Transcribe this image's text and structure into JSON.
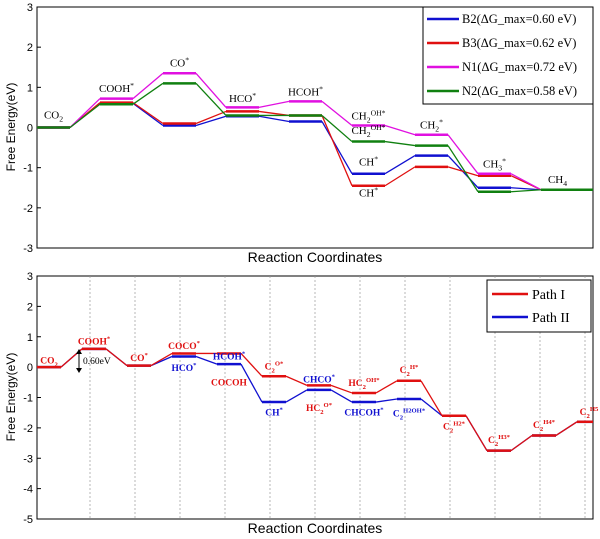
{
  "chart_data": [
    {
      "type": "line",
      "ylabel": "Free Energy(eV)",
      "xlabel": "Reaction Coordinates",
      "ylim": [
        -3,
        3
      ],
      "yticks": [
        "-3",
        "-2",
        "-1",
        "0",
        "1",
        "2",
        "3"
      ],
      "legend_position": "top-right",
      "series": [
        {
          "name": "B2(ΔG_max=0.60 eV)",
          "color": "#1010d0",
          "values": [
            0,
            0.6,
            0.05,
            0.28,
            0.15,
            -1.15,
            -0.7,
            -1.5,
            -1.55
          ]
        },
        {
          "name": "B3(ΔG_max=0.62 eV)",
          "color": "#e01010",
          "values": [
            0,
            0.62,
            0.1,
            0.4,
            0.3,
            -1.45,
            -0.98,
            -1.2,
            -1.55
          ]
        },
        {
          "name": "N1(ΔG_max=0.72 eV)",
          "color": "#e010e0",
          "values": [
            0,
            0.72,
            1.35,
            0.5,
            0.65,
            0.05,
            -0.18,
            -1.15,
            -1.55
          ]
        },
        {
          "name": "N2(ΔG_max=0.58 eV)",
          "color": "#108010",
          "values": [
            0,
            0.58,
            1.1,
            0.3,
            0.3,
            -0.35,
            -0.45,
            -1.6,
            -1.55
          ]
        }
      ],
      "annotations": [
        {
          "text": "CO",
          "sub": "2",
          "sup": "",
          "x": 0,
          "y": 0.22
        },
        {
          "text": "COOH",
          "sub": "",
          "sup": "*",
          "x": 1,
          "y": 0.88
        },
        {
          "text": "CO",
          "sub": "",
          "sup": "*",
          "x": 2,
          "y": 1.52
        },
        {
          "text": "HCO",
          "sub": "",
          "sup": "*",
          "x": 3,
          "y": 0.64
        },
        {
          "text": "HCOH",
          "sub": "",
          "sup": "*",
          "x": 4,
          "y": 0.8
        },
        {
          "text": "CH",
          "sub": "2",
          "sup": "OH*",
          "x": 5,
          "y": 0.2
        },
        {
          "text": "CH",
          "sub": "2",
          "sup": "OH*",
          "x": 5,
          "y": -0.16
        },
        {
          "text": "CH",
          "sub": "",
          "sup": "*",
          "x": 5,
          "y": -0.95
        },
        {
          "text": "CH",
          "sub": "",
          "sup": "*",
          "x": 5,
          "y": -1.72
        },
        {
          "text": "CH",
          "sub": "2",
          "sup": "*",
          "x": 6,
          "y": -0.03
        },
        {
          "text": "CH",
          "sub": "3",
          "sup": "*",
          "x": 7,
          "y": -1.0
        },
        {
          "text": "CH",
          "sub": "4",
          "sup": "",
          "x": 8,
          "y": -1.38
        }
      ]
    },
    {
      "type": "line",
      "ylabel": "Free Energy(eV)",
      "xlabel": "Reaction Coordinates",
      "ylim": [
        -5,
        3
      ],
      "yticks": [
        "-5",
        "-4",
        "-3",
        "-2",
        "-1",
        "0",
        "1",
        "2",
        "3"
      ],
      "legend_position": "top-right",
      "series": [
        {
          "name": "Path I",
          "color": "#e01010",
          "values": [
            0,
            0.6,
            0.05,
            0.45,
            0.45,
            -0.3,
            -0.6,
            -0.85,
            -0.45,
            -1.6,
            -2.75,
            -2.25,
            -1.8
          ]
        },
        {
          "name": "Path II",
          "color": "#1010d0",
          "values": [
            0,
            0.6,
            0.05,
            0.35,
            0.1,
            -1.15,
            -0.75,
            -1.15,
            -1.05,
            -1.6,
            -2.75,
            -2.25,
            -1.8
          ]
        }
      ],
      "annotations": [
        {
          "text": "CO",
          "sub": "2",
          "sup": "",
          "x": 0,
          "y": 0.12,
          "color": "red"
        },
        {
          "text": "COOH",
          "sub": "",
          "sup": "*",
          "x": 1,
          "y": 0.75,
          "color": "red"
        },
        {
          "text": "CO",
          "sub": "",
          "sup": "*",
          "x": 2,
          "y": 0.2,
          "color": "red"
        },
        {
          "text": "COCO",
          "sub": "",
          "sup": "*",
          "x": 3,
          "y": 0.6,
          "color": "red"
        },
        {
          "text": "HCO",
          "sub": "",
          "sup": "*",
          "x": 3,
          "y": -0.12,
          "color": "blue"
        },
        {
          "text": "HCOH",
          "sub": "",
          "sup": "*",
          "x": 4,
          "y": 0.25,
          "color": "blue"
        },
        {
          "text": "COCOH",
          "sub": "",
          "sup": "",
          "x": 4,
          "y": -0.6,
          "color": "red"
        },
        {
          "text": "C",
          "sub": "2",
          "sup": "O*",
          "x": 5,
          "y": -0.07,
          "color": "red"
        },
        {
          "text": "CH",
          "sub": "",
          "sup": "*",
          "x": 5,
          "y": -1.6,
          "color": "blue"
        },
        {
          "text": "CHCO",
          "sub": "",
          "sup": "*",
          "x": 6,
          "y": -0.5,
          "color": "blue"
        },
        {
          "text": "HC",
          "sub": "2",
          "sup": "O*",
          "x": 6,
          "y": -1.45,
          "color": "red"
        },
        {
          "text": "HC",
          "sub": "2",
          "sup": "OH*",
          "x": 7,
          "y": -0.62,
          "color": "red"
        },
        {
          "text": "CHCOH",
          "sub": "",
          "sup": "*",
          "x": 7,
          "y": -1.6,
          "color": "blue"
        },
        {
          "text": "C",
          "sub": "2",
          "sup": "H*",
          "x": 8,
          "y": -0.2,
          "color": "red"
        },
        {
          "text": "C",
          "sub": "2",
          "sup": "H2OH*",
          "x": 8,
          "y": -1.62,
          "color": "blue"
        },
        {
          "text": "C",
          "sub": "2",
          "sup": "H2*",
          "x": 9,
          "y": -2.05,
          "color": "red"
        },
        {
          "text": "C",
          "sub": "2",
          "sup": "H3*",
          "x": 10,
          "y": -2.5,
          "color": "red"
        },
        {
          "text": "C",
          "sub": "2",
          "sup": "H4*",
          "x": 11,
          "y": -2.0,
          "color": "red"
        },
        {
          "text": "C",
          "sub": "2",
          "sup": "H5",
          "x": 12,
          "y": -1.58,
          "color": "red"
        }
      ],
      "step_annotation": "0.60eV"
    }
  ]
}
